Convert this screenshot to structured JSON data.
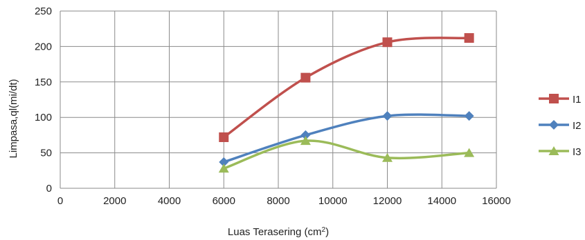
{
  "chart_data": {
    "type": "line",
    "title": "",
    "xlabel": "Luas Terasering (cm",
    "xlabel_sup": "2",
    "xlabel_suffix": ")",
    "ylabel": "Limpasa,ql(mi/dt)",
    "xlim": [
      0,
      16000
    ],
    "ylim": [
      0,
      250
    ],
    "x_ticks": [
      0,
      2000,
      4000,
      6000,
      8000,
      10000,
      12000,
      14000,
      16000
    ],
    "y_ticks": [
      0,
      50,
      100,
      150,
      200,
      250
    ],
    "grid": true,
    "smooth": true,
    "legend": "right",
    "x": [
      6000,
      9000,
      12000,
      15000
    ],
    "series": [
      {
        "name": "I1",
        "values": [
          72,
          156,
          206,
          212
        ],
        "color": "#c0504d",
        "marker": "square"
      },
      {
        "name": "I2",
        "values": [
          37,
          75,
          102,
          102
        ],
        "color": "#4f81bd",
        "marker": "diamond"
      },
      {
        "name": "I3",
        "values": [
          28,
          67,
          43,
          50
        ],
        "color": "#9bbb59",
        "marker": "triangle"
      }
    ]
  }
}
